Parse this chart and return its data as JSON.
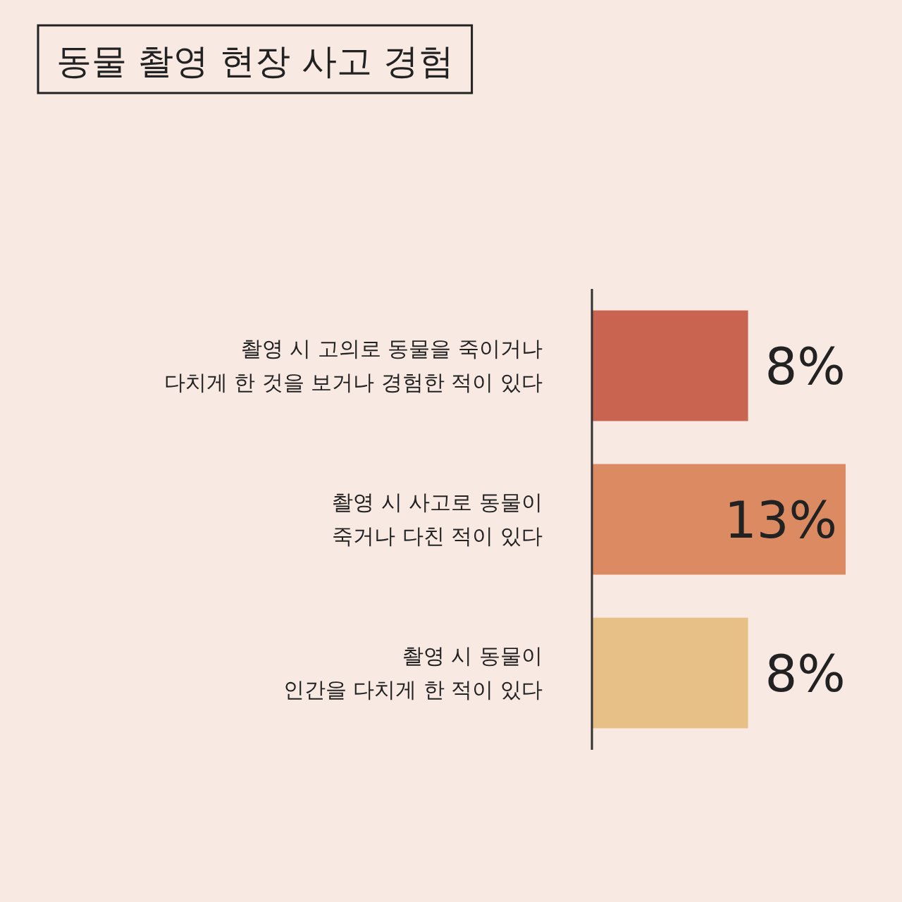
{
  "chart_data": {
    "type": "bar",
    "orientation": "horizontal",
    "title": "동물 촬영 현장 사고 경험",
    "categories": [
      "촬영 시 고의로 동물을 죽이거나\n다치게 한 것을 보거나 경험한 적이 있다",
      "촬영 시 사고로 동물이\n죽거나 다친 적이 있다",
      "촬영 시 동물이\n인간을 다치게 한 적이 있다"
    ],
    "values": [
      8,
      13,
      8
    ],
    "colors": [
      "#c8644f",
      "#db8a62",
      "#e6c087"
    ],
    "value_labels": [
      "8%",
      "13%",
      "8%"
    ],
    "xlim": [
      0,
      13
    ]
  }
}
